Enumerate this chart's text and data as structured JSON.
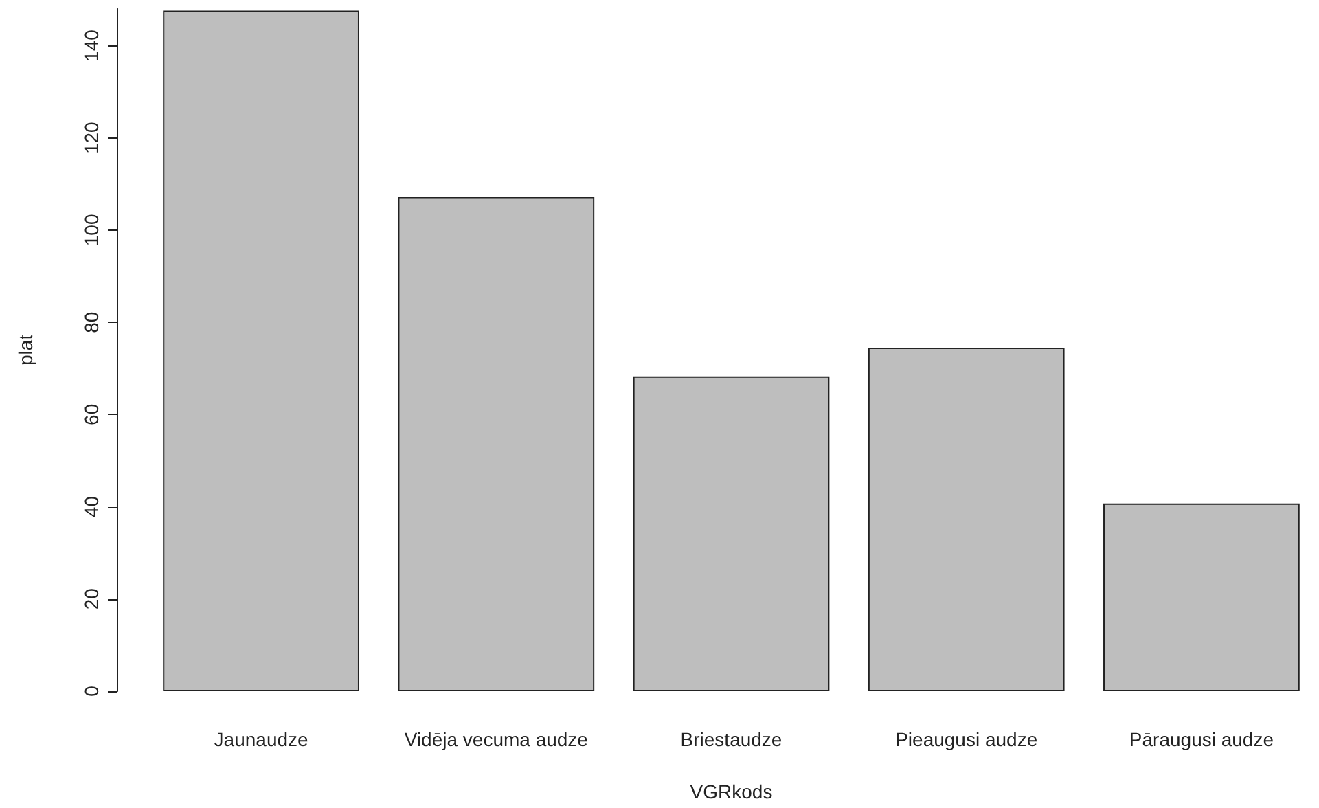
{
  "chart_data": {
    "type": "bar",
    "xlabel": "VGRkods",
    "ylabel": "plat",
    "categories": [
      "Jaunaudze",
      "Vidēja vecuma audze",
      "Briestaudze",
      "Pieaugusi audze",
      "Pāraugusi audze"
    ],
    "values": [
      147.6,
      107.2,
      68.3,
      74.5,
      40.7
    ],
    "color": "#bebebe",
    "ylim": [
      0,
      148
    ],
    "yticks": [
      0,
      20,
      40,
      60,
      80,
      100,
      120,
      140
    ],
    "grid": false
  }
}
